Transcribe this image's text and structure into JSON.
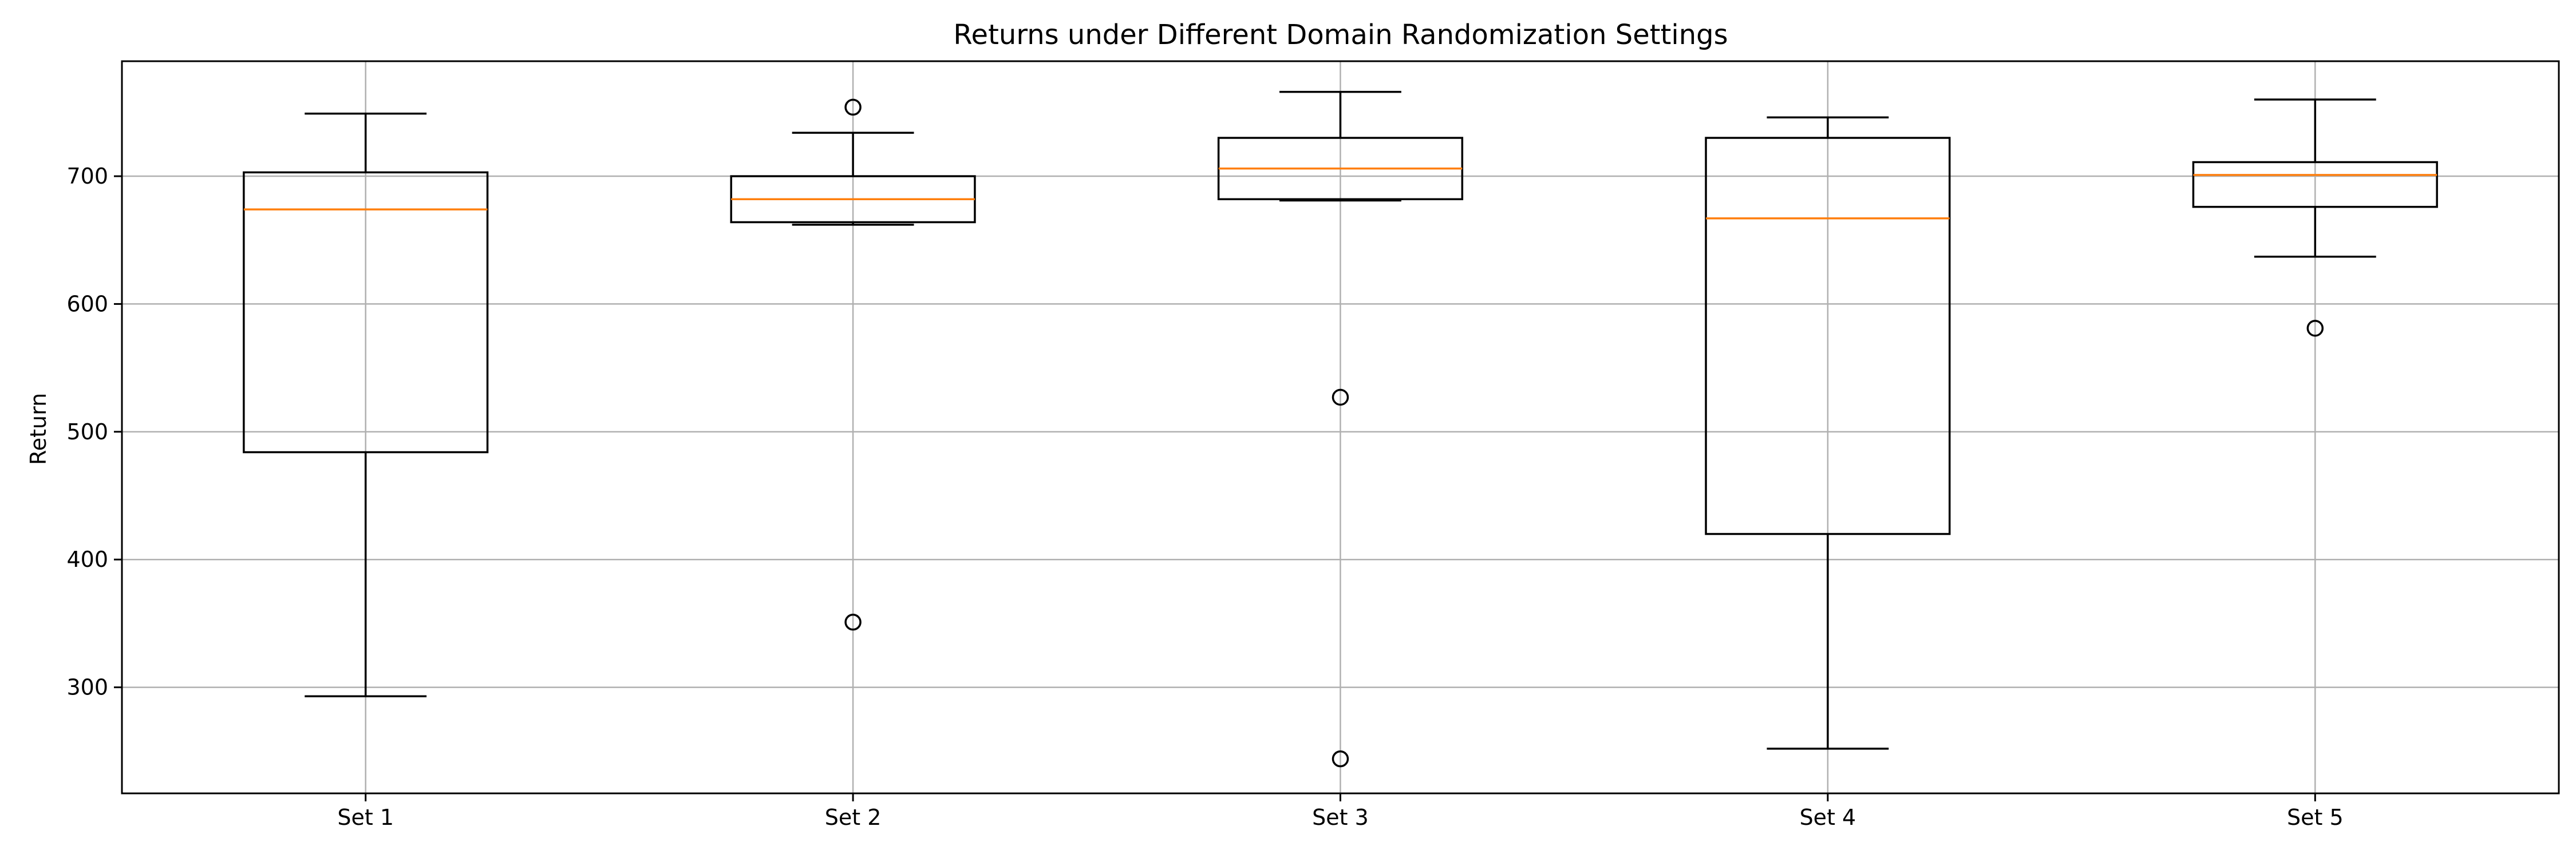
{
  "chart_data": {
    "type": "box",
    "title": "Returns under Different Domain Randomization Settings",
    "xlabel": "",
    "ylabel": "Return",
    "categories": [
      "Set 1",
      "Set 2",
      "Set 3",
      "Set 4",
      "Set 5"
    ],
    "ylim": [
      217,
      790
    ],
    "yticks": [
      300,
      400,
      500,
      600,
      700
    ],
    "grid": true,
    "boxes": [
      {
        "label": "Set 1",
        "whisker_low": 293,
        "q1": 484,
        "median": 674,
        "q3": 703,
        "whisker_high": 749,
        "outliers": []
      },
      {
        "label": "Set 2",
        "whisker_low": 662,
        "q1": 664,
        "median": 682,
        "q3": 700,
        "whisker_high": 734,
        "outliers": [
          754,
          351
        ]
      },
      {
        "label": "Set 3",
        "whisker_low": 681,
        "q1": 682,
        "median": 706,
        "q3": 730,
        "whisker_high": 766,
        "outliers": [
          527,
          244
        ]
      },
      {
        "label": "Set 4",
        "whisker_low": 252,
        "q1": 420,
        "median": 667,
        "q3": 730,
        "whisker_high": 746,
        "outliers": []
      },
      {
        "label": "Set 5",
        "whisker_low": 637,
        "q1": 676,
        "median": 701,
        "q3": 711,
        "whisker_high": 760,
        "outliers": [
          581
        ]
      }
    ],
    "colors": {
      "box": "#000000",
      "median": "#ff7f0e",
      "grid": "#b0b0b0"
    }
  }
}
